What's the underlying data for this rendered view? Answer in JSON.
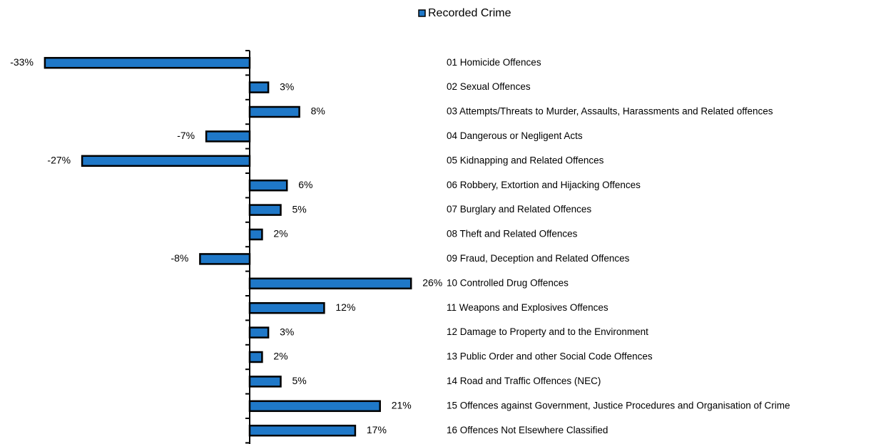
{
  "chart_data": {
    "type": "bar",
    "orientation": "horizontal",
    "legend": "top",
    "series": [
      {
        "name": "Recorded Crime",
        "color": "#1f78c8",
        "values": [
          -33,
          3,
          8,
          -7,
          -27,
          6,
          5,
          2,
          -8,
          26,
          12,
          3,
          2,
          5,
          21,
          17
        ],
        "value_labels": [
          "-33%",
          "3%",
          "8%",
          "-7%",
          "-27%",
          "6%",
          "5%",
          "2%",
          "-8%",
          "26%",
          "12%",
          "3%",
          "2%",
          "5%",
          "21%",
          "17%"
        ]
      }
    ],
    "categories": [
      "01 Homicide Offences",
      "02 Sexual Offences",
      "03 Attempts/Threats to Murder, Assaults, Harassments and Related offences",
      "04 Dangerous or Negligent Acts",
      "05 Kidnapping and Related Offences",
      "06 Robbery, Extortion and Hijacking Offences",
      "07 Burglary and Related Offences",
      "08 Theft and Related Offences",
      "09 Fraud, Deception and Related Offences",
      "10 Controlled Drug Offences",
      "11 Weapons and Explosives Offences",
      "12 Damage to Property and to the Environment",
      "13 Public Order and other Social Code Offences",
      "14 Road and Traffic Offences (NEC)",
      "15 Offences against Government, Justice Procedures and Organisation of Crime",
      "16 Offences Not Elsewhere Classified"
    ],
    "xlim": [
      -40,
      30
    ]
  }
}
